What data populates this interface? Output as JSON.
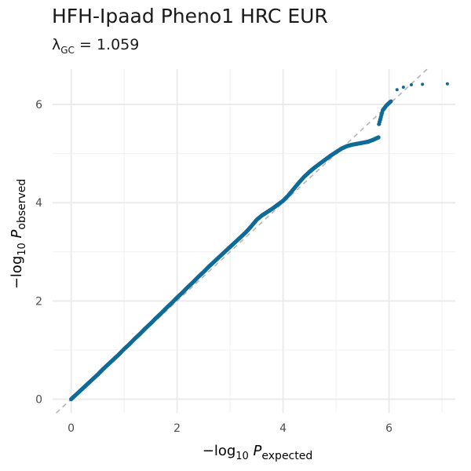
{
  "chart_data": {
    "type": "scatter",
    "title": "HFH-Ipaad Pheno1 HRC EUR",
    "subtitle": {
      "symbol": "λ",
      "subscript": "GC",
      "operator": " = ",
      "value": "1.059"
    },
    "xlabel": {
      "prefix": "−log",
      "base": "10",
      "var": "P",
      "sub": "expected"
    },
    "ylabel": {
      "prefix": "−log",
      "base": "10",
      "var": "P",
      "sub": "observed"
    },
    "xlim": [
      -0.35,
      7.25
    ],
    "ylim": [
      -0.28,
      6.72
    ],
    "x_ticks": [
      0,
      2,
      4,
      6
    ],
    "y_ticks": [
      0,
      2,
      4,
      6
    ],
    "x_tick_labels": [
      "0",
      "2",
      "4",
      "6"
    ],
    "y_tick_labels": [
      "0",
      "2",
      "4",
      "6"
    ],
    "grid": true,
    "reference_line": {
      "slope": 1,
      "intercept": 0,
      "style": "dashed",
      "color": "#b3b3b3"
    },
    "point_color": "#0f6a96",
    "series": [
      {
        "points": [
          [
            0.0,
            0.0
          ],
          [
            0.1,
            0.1
          ],
          [
            0.2,
            0.2
          ],
          [
            0.3,
            0.3
          ],
          [
            0.4,
            0.4
          ],
          [
            0.5,
            0.5
          ],
          [
            0.6,
            0.61
          ],
          [
            0.7,
            0.71
          ],
          [
            0.8,
            0.81
          ],
          [
            0.9,
            0.91
          ],
          [
            1.0,
            1.02
          ],
          [
            1.1,
            1.12
          ],
          [
            1.2,
            1.23
          ],
          [
            1.3,
            1.33
          ],
          [
            1.4,
            1.44
          ],
          [
            1.5,
            1.54
          ],
          [
            1.6,
            1.65
          ],
          [
            1.7,
            1.75
          ],
          [
            1.8,
            1.86
          ],
          [
            1.9,
            1.96
          ],
          [
            2.0,
            2.07
          ],
          [
            2.1,
            2.17
          ],
          [
            2.2,
            2.28
          ],
          [
            2.3,
            2.38
          ],
          [
            2.4,
            2.49
          ],
          [
            2.5,
            2.59
          ],
          [
            2.6,
            2.7
          ],
          [
            2.7,
            2.8
          ],
          [
            2.8,
            2.9
          ],
          [
            2.9,
            3.0
          ],
          [
            3.0,
            3.1
          ],
          [
            3.1,
            3.2
          ],
          [
            3.2,
            3.3
          ],
          [
            3.3,
            3.4
          ],
          [
            3.4,
            3.52
          ],
          [
            3.5,
            3.65
          ],
          [
            3.6,
            3.74
          ],
          [
            3.7,
            3.81
          ],
          [
            3.8,
            3.88
          ],
          [
            3.9,
            3.96
          ],
          [
            4.0,
            4.04
          ],
          [
            4.1,
            4.15
          ],
          [
            4.2,
            4.28
          ],
          [
            4.3,
            4.41
          ],
          [
            4.4,
            4.53
          ],
          [
            4.5,
            4.63
          ],
          [
            4.6,
            4.72
          ],
          [
            4.7,
            4.8
          ],
          [
            4.8,
            4.88
          ],
          [
            4.9,
            4.96
          ],
          [
            5.0,
            5.03
          ],
          [
            5.1,
            5.1
          ],
          [
            5.2,
            5.15
          ],
          [
            5.3,
            5.18
          ],
          [
            5.4,
            5.2
          ],
          [
            5.5,
            5.22
          ],
          [
            5.6,
            5.24
          ],
          [
            5.7,
            5.28
          ],
          [
            5.8,
            5.33
          ],
          [
            5.81,
            5.6
          ],
          [
            5.88,
            5.88
          ],
          [
            5.95,
            5.98
          ],
          [
            6.04,
            6.07
          ],
          [
            6.15,
            6.3
          ],
          [
            6.27,
            6.35
          ],
          [
            6.42,
            6.4
          ],
          [
            6.63,
            6.41
          ],
          [
            7.1,
            6.42
          ]
        ]
      }
    ]
  }
}
